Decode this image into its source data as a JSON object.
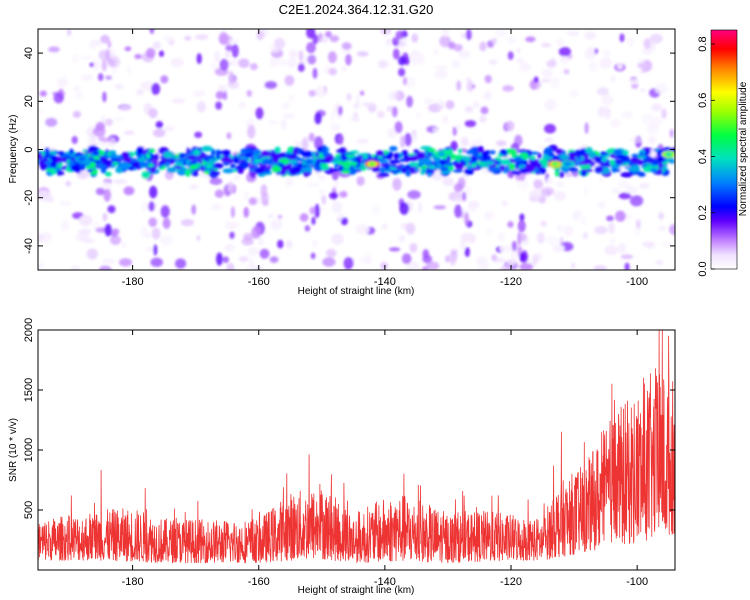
{
  "title": "C2E1.2024.364.12.31.G20",
  "chart_data": [
    {
      "type": "heatmap",
      "xlabel": "Height of straight line (km)",
      "ylabel": "Frequency (Hz)",
      "xlim": [
        -195,
        -94
      ],
      "ylim": [
        -50,
        50
      ],
      "xticks": [
        -180,
        -160,
        -140,
        -120,
        -100
      ],
      "yticks": [
        -40,
        -20,
        0,
        20,
        40
      ],
      "colorbar": {
        "label": "Normalized spectral amplitude",
        "range": [
          0.0,
          0.85
        ],
        "ticks": [
          0.0,
          0.2,
          0.4,
          0.6,
          0.8
        ]
      },
      "band_center_hz": -5,
      "band_width_hz": 10,
      "hotspots": [
        {
          "x": -142,
          "y": -6,
          "value": 0.75
        },
        {
          "x": -113,
          "y": -6,
          "value": 0.7
        },
        {
          "x": -95,
          "y": -2,
          "value": 0.6
        },
        {
          "x": -131,
          "y": -2,
          "value": 0.45
        },
        {
          "x": -152,
          "y": -5,
          "value": 0.35
        },
        {
          "x": -188,
          "y": -4,
          "value": 0.35
        },
        {
          "x": -111,
          "y": -6,
          "value": 0.4
        }
      ]
    },
    {
      "type": "line",
      "xlabel": "Height of straight line (km)",
      "ylabel": "SNR (10 * v/v)",
      "xlim": [
        -195,
        -94
      ],
      "ylim": [
        0,
        2000
      ],
      "xticks": [
        -180,
        -160,
        -140,
        -120,
        -100
      ],
      "yticks": [
        500,
        1000,
        1500,
        2000
      ],
      "color": "#ee3333",
      "envelope": [
        {
          "x": -195,
          "low": 80,
          "high": 420
        },
        {
          "x": -185,
          "low": 80,
          "high": 500
        },
        {
          "x": -180,
          "low": 70,
          "high": 520
        },
        {
          "x": -175,
          "low": 60,
          "high": 430
        },
        {
          "x": -165,
          "low": 60,
          "high": 420
        },
        {
          "x": -160,
          "low": 60,
          "high": 430
        },
        {
          "x": -155,
          "low": 80,
          "high": 650
        },
        {
          "x": -150,
          "low": 90,
          "high": 700
        },
        {
          "x": -145,
          "low": 60,
          "high": 480
        },
        {
          "x": -138,
          "low": 70,
          "high": 650
        },
        {
          "x": -130,
          "low": 60,
          "high": 480
        },
        {
          "x": -125,
          "low": 70,
          "high": 500
        },
        {
          "x": -115,
          "low": 80,
          "high": 430
        },
        {
          "x": -113,
          "low": 100,
          "high": 700
        },
        {
          "x": -108,
          "low": 150,
          "high": 900
        },
        {
          "x": -104,
          "low": 200,
          "high": 1300
        },
        {
          "x": -100,
          "low": 220,
          "high": 1500
        },
        {
          "x": -97,
          "low": 250,
          "high": 1700
        },
        {
          "x": -94,
          "low": 300,
          "high": 1600
        }
      ],
      "peaks": [
        {
          "x": -96,
          "y": 2000
        },
        {
          "x": -95,
          "y": 1950
        },
        {
          "x": -99,
          "y": 1600
        },
        {
          "x": -104,
          "y": 1550
        },
        {
          "x": -112,
          "y": 1150
        },
        {
          "x": -152,
          "y": 960
        },
        {
          "x": -137,
          "y": 800
        },
        {
          "x": -185,
          "y": 830
        },
        {
          "x": -178,
          "y": 680
        },
        {
          "x": -122,
          "y": 620
        }
      ]
    }
  ]
}
